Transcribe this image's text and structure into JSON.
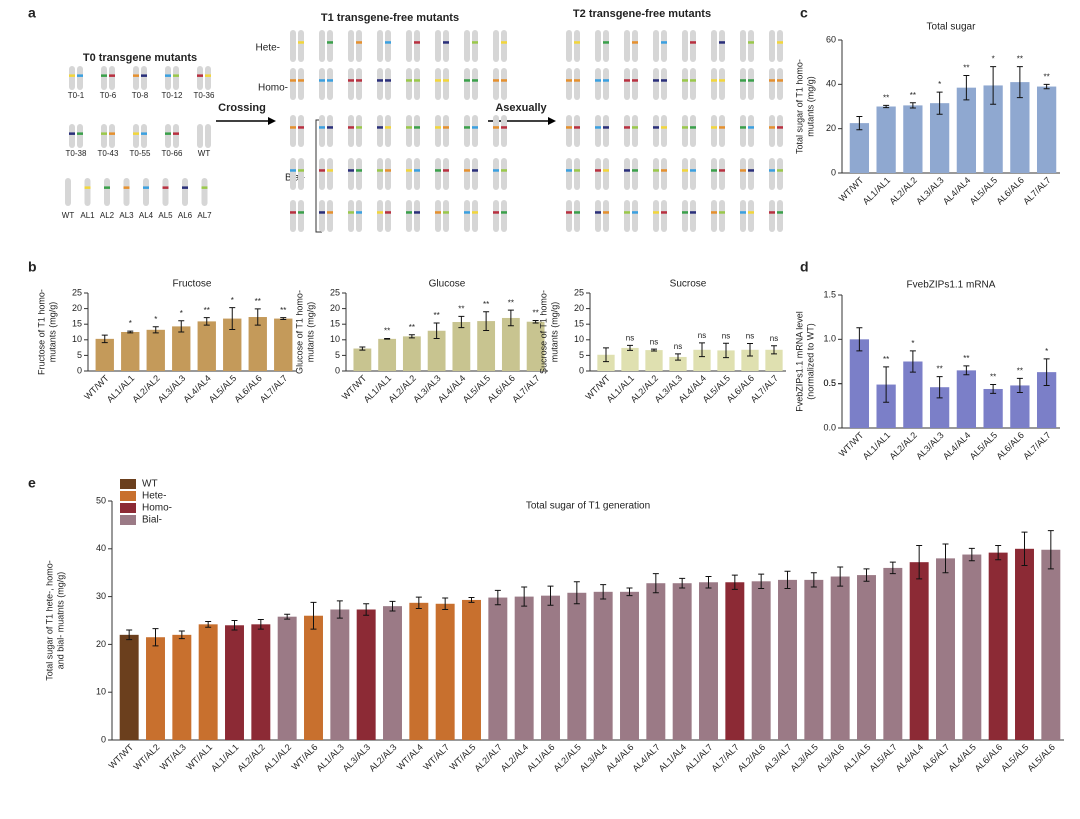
{
  "diagram": {
    "panel": "a",
    "t0_title": "T0 transgene mutants",
    "t0_labels": [
      "T0-1",
      "T0-6",
      "T0-8",
      "T0-12",
      "T0-36",
      "T0-38",
      "T0-43",
      "T0-55",
      "T0-66",
      "WT"
    ],
    "allele_labels": [
      "WT",
      "AL1",
      "AL2",
      "AL3",
      "AL4",
      "AL5",
      "AL6",
      "AL7"
    ],
    "crossing": "Crossing",
    "t1_title": "T1 transgene-free mutants",
    "rows": [
      "Hete-",
      "Homo-",
      "Bial-"
    ],
    "asexually": "Asexually",
    "t2_title": "T2 transgene-free mutants"
  },
  "panels": [
    "b",
    "c",
    "d",
    "e"
  ],
  "chart_data": [
    {
      "type": "bar",
      "title": "Fructose",
      "ylabel": [
        "Fructose of T1 homo-",
        "mutants (mg/g)"
      ],
      "color": "#c49a5a",
      "categories": [
        "WT/WT",
        "AL1/AL1",
        "AL2/AL2",
        "AL3/AL3",
        "AL4/AL4",
        "AL5/AL5",
        "AL6/AL6",
        "AL7/AL7"
      ],
      "values": [
        10.3,
        12.5,
        13.2,
        14.3,
        15.9,
        16.8,
        17.3,
        16.8
      ],
      "errors": [
        1.2,
        0.3,
        1,
        1.8,
        1.2,
        3.5,
        2.6,
        0.3
      ],
      "annotations": [
        null,
        "*",
        "*",
        "*",
        "**",
        "*",
        "**",
        "**"
      ],
      "ylim": [
        0,
        25
      ],
      "yticks": [
        0,
        5,
        10,
        15,
        20,
        25
      ]
    },
    {
      "type": "bar",
      "title": "Glucose",
      "ylabel": [
        "Glucose of T1 homo-",
        "mutants (mg/g)"
      ],
      "color": "#c8c490",
      "categories": [
        "WT/WT",
        "AL1/AL1",
        "AL2/AL2",
        "AL3/AL3",
        "AL4/AL4",
        "AL5/AL5",
        "AL6/AL6",
        "AL7/AL7"
      ],
      "values": [
        7.2,
        10.3,
        11.1,
        12.9,
        15.7,
        16,
        17,
        15.8
      ],
      "errors": [
        0.5,
        0.1,
        0.5,
        2.5,
        1.8,
        3,
        2.5,
        0.4
      ],
      "annotations": [
        null,
        "**",
        "**",
        "**",
        "**",
        "**",
        "**",
        "**"
      ],
      "ylim": [
        0,
        25
      ],
      "yticks": [
        0,
        5,
        10,
        15,
        20,
        25
      ]
    },
    {
      "type": "bar",
      "title": "Sucrose",
      "ylabel": [
        "Sucrose of T1 homo-",
        "mutants (mg/g)"
      ],
      "color": "#dfe0b0",
      "categories": [
        "WT/WT",
        "AL1/AL1",
        "AL2/AL2",
        "AL3/AL3",
        "AL4/AL4",
        "AL5/AL5",
        "AL6/AL6",
        "AL7/AL7"
      ],
      "values": [
        5.2,
        7.4,
        6.7,
        4.5,
        6.8,
        6.6,
        6.8,
        6.8
      ],
      "errors": [
        2.2,
        0.8,
        0.3,
        1,
        2.2,
        2.3,
        2,
        1.3
      ],
      "annotations": [
        null,
        "ns",
        "ns",
        "ns",
        "ns",
        "ns",
        "ns",
        "ns"
      ],
      "ylim": [
        0,
        25
      ],
      "yticks": [
        0,
        5,
        10,
        15,
        20,
        25
      ]
    },
    {
      "type": "bar",
      "title": "Total sugar",
      "ylabel": [
        "Total sugar of T1 homo-",
        "mutants (mg/g)"
      ],
      "color": "#8fa8d0",
      "categories": [
        "WT/WT",
        "AL1/AL1",
        "AL2/AL2",
        "AL3/AL3",
        "AL4/AL4",
        "AL5/AL5",
        "AL6/AL6",
        "AL7/AL7"
      ],
      "values": [
        22.5,
        30,
        30.5,
        31.5,
        38.5,
        39.5,
        41,
        39
      ],
      "errors": [
        3,
        0.5,
        1.2,
        5,
        5.5,
        8.5,
        7,
        1
      ],
      "annotations": [
        null,
        "**",
        "**",
        "*",
        "**",
        "*",
        "**",
        "**"
      ],
      "ylim": [
        0,
        60
      ],
      "yticks": [
        0,
        20,
        40,
        60
      ]
    },
    {
      "type": "bar",
      "title": "FvebZIPs1.1 mRNA",
      "ylabel": [
        "FvebZIPs1.1 mRNA level",
        "(normalized to WT)"
      ],
      "color": "#7b7fc8",
      "categories": [
        "WT/WT",
        "AL1/AL1",
        "AL2/AL2",
        "AL3/AL3",
        "AL4/AL4",
        "AL5/AL5",
        "AL6/AL6",
        "AL7/AL7"
      ],
      "values": [
        1.0,
        0.49,
        0.75,
        0.46,
        0.65,
        0.44,
        0.48,
        0.63
      ],
      "errors": [
        0.13,
        0.2,
        0.12,
        0.12,
        0.05,
        0.05,
        0.08,
        0.15
      ],
      "annotations": [
        null,
        "**",
        "*",
        "**",
        "**",
        "**",
        "**",
        "*"
      ],
      "ylim": [
        0,
        1.5
      ],
      "yticks": [
        {
          "value": 0,
          "label": "0.0"
        },
        0.5,
        {
          "value": 1,
          "label": "1.0"
        },
        0.5,
        {
          "value": 1.5,
          "label": "1.5"
        }
      ]
    },
    {
      "type": "bar",
      "title": "Total sugar of T1 generation",
      "ylabel": [
        "Total sugar of T1 hete-, homo-",
        "and bial- muatnts (mg/g)"
      ],
      "legend": [
        {
          "name": "WT",
          "color": "#6b3f1d"
        },
        {
          "name": "Hete-",
          "color": "#c8702e"
        },
        {
          "name": "Homo-",
          "color": "#8c2a35"
        },
        {
          "name": "Bial-",
          "color": "#9b7a86"
        }
      ],
      "categories": [
        "WT/WT",
        "WT/AL2",
        "WT/AL3",
        "WT/AL1",
        "AL1/AL1",
        "AL2/AL2",
        "AL1/AL2",
        "WT/AL6",
        "AL1/AL3",
        "AL3/AL3",
        "AL2/AL3",
        "WT/AL4",
        "WT/AL7",
        "WT/AL5",
        "AL2/AL7",
        "AL2/AL4",
        "AL1/AL6",
        "AL2/AL5",
        "AL3/AL4",
        "AL4/AL6",
        "AL4/AL7",
        "AL1/AL4",
        "AL1/AL7",
        "AL7/AL7",
        "AL2/AL6",
        "AL3/AL7",
        "AL3/AL5",
        "AL3/AL6",
        "AL1/AL5",
        "AL5/AL7",
        "AL4/AL4",
        "AL6/AL7",
        "AL4/AL5",
        "AL6/AL6",
        "AL5/AL5",
        "AL5/AL6"
      ],
      "values": [
        22,
        21.5,
        22,
        24.2,
        24,
        24.2,
        25.8,
        26,
        27.3,
        27.3,
        28,
        28.7,
        28.5,
        29.3,
        29.8,
        30,
        30.2,
        30.8,
        31,
        31,
        32.8,
        32.8,
        33,
        33,
        33.2,
        33.5,
        33.5,
        34.2,
        34.5,
        36,
        37.2,
        38,
        38.8,
        39.2,
        40,
        39.8
      ],
      "errors": [
        1,
        1.8,
        0.8,
        0.6,
        1,
        1,
        0.5,
        2.8,
        1.8,
        1.2,
        1,
        1.2,
        1.2,
        0.5,
        1.5,
        2,
        2,
        2.3,
        1.5,
        0.8,
        2,
        1,
        1.2,
        1.5,
        1.5,
        1.8,
        1.5,
        2,
        1.3,
        1.2,
        3.5,
        3,
        1.3,
        1.5,
        3.5,
        4
      ],
      "colors": [
        "#6b3f1d",
        "#c8702e",
        "#c8702e",
        "#c8702e",
        "#8c2a35",
        "#8c2a35",
        "#9b7a86",
        "#c8702e",
        "#9b7a86",
        "#8c2a35",
        "#9b7a86",
        "#c8702e",
        "#c8702e",
        "#c8702e",
        "#9b7a86",
        "#9b7a86",
        "#9b7a86",
        "#9b7a86",
        "#9b7a86",
        "#9b7a86",
        "#9b7a86",
        "#9b7a86",
        "#9b7a86",
        "#8c2a35",
        "#9b7a86",
        "#9b7a86",
        "#9b7a86",
        "#9b7a86",
        "#9b7a86",
        "#9b7a86",
        "#8c2a35",
        "#9b7a86",
        "#9b7a86",
        "#8c2a35",
        "#8c2a35",
        "#9b7a86"
      ],
      "ylim": [
        0,
        50
      ],
      "yticks": [
        0,
        10,
        20,
        30,
        40,
        50
      ]
    }
  ]
}
